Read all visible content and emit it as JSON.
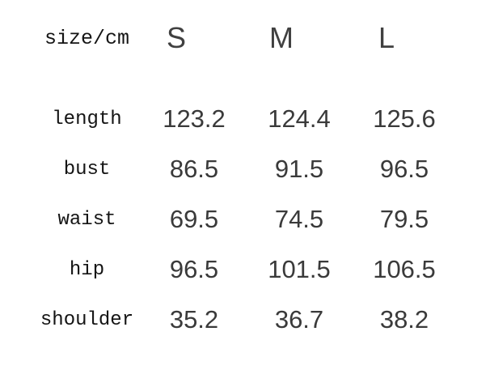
{
  "page": {
    "background": "#ffffff"
  },
  "colors": {
    "label_text": "#141414",
    "value_text": "#3a3a3a",
    "header_text": "#404040"
  },
  "table": {
    "unit_label": "size/cm",
    "size_headers": [
      "S",
      "M",
      "L"
    ],
    "rows": [
      {
        "label": "length",
        "values": [
          "123.2",
          "124.4",
          "125.6"
        ]
      },
      {
        "label": "bust",
        "values": [
          "86.5",
          "91.5",
          "96.5"
        ]
      },
      {
        "label": "waist",
        "values": [
          "69.5",
          "74.5",
          "79.5"
        ]
      },
      {
        "label": "hip",
        "values": [
          "96.5",
          "101.5",
          "106.5"
        ]
      },
      {
        "label": "shoulder",
        "values": [
          "35.2",
          "36.7",
          "38.2"
        ]
      }
    ]
  },
  "chart_data": {
    "type": "table",
    "title": "size/cm",
    "units": "cm",
    "columns": [
      "size/cm",
      "S",
      "M",
      "L"
    ],
    "rows": [
      [
        "length",
        123.2,
        124.4,
        125.6
      ],
      [
        "bust",
        86.5,
        91.5,
        96.5
      ],
      [
        "waist",
        69.5,
        74.5,
        79.5
      ],
      [
        "hip",
        96.5,
        101.5,
        106.5
      ],
      [
        "shoulder",
        35.2,
        36.7,
        38.2
      ]
    ]
  }
}
